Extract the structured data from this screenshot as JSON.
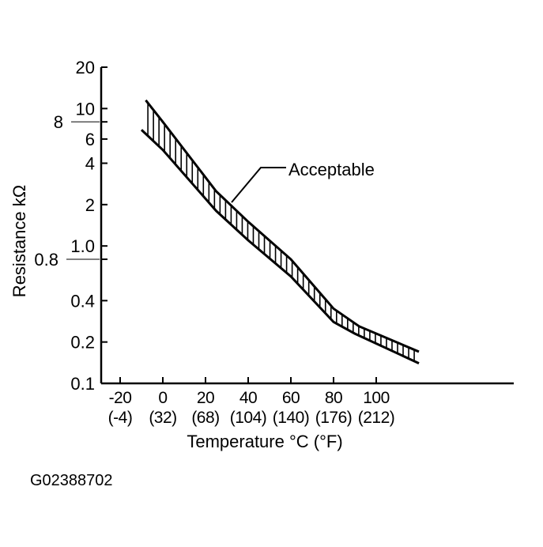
{
  "chart_data": {
    "type": "area",
    "title": "",
    "xlabel": "Temperature °C (°F)",
    "ylabel": "Resistance kΩ",
    "y_scale": "log",
    "ylim": [
      0.1,
      20
    ],
    "xlim": [
      -30,
      190
    ],
    "x_ticks": [
      {
        "c": "-20",
        "f": "(-4)"
      },
      {
        "c": "0",
        "f": "(32)"
      },
      {
        "c": "20",
        "f": "(68)"
      },
      {
        "c": "40",
        "f": "(104)"
      },
      {
        "c": "60",
        "f": "(140)"
      },
      {
        "c": "80",
        "f": "(176)"
      },
      {
        "c": "100",
        "f": "(212)"
      }
    ],
    "y_ticks": [
      "20",
      "10",
      "8",
      "6",
      "4",
      "2",
      "1.0",
      "0.8",
      "0.4",
      "0.2",
      "0.1"
    ],
    "grid": false,
    "series": [
      {
        "name": "Acceptable",
        "role": "upper",
        "x": [
          -8,
          0,
          25,
          40,
          60,
          80,
          92,
          120
        ],
        "y": [
          11.5,
          8,
          2.5,
          1.5,
          0.8,
          0.35,
          0.26,
          0.17
        ]
      },
      {
        "name": "Acceptable",
        "role": "lower",
        "x": [
          -10,
          0,
          25,
          40,
          60,
          80,
          90,
          120
        ],
        "y": [
          7,
          5,
          1.8,
          1.1,
          0.6,
          0.28,
          0.23,
          0.14
        ]
      }
    ],
    "annotation": "Acceptable",
    "colors": {
      "ink": "#000000",
      "background": "#ffffff"
    }
  },
  "figure_code": "G02388702"
}
